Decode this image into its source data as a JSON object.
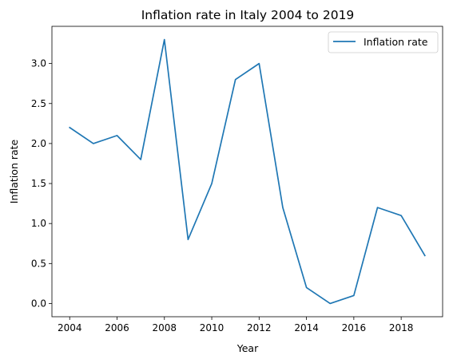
{
  "chart_data": {
    "type": "line",
    "title": "Inflation rate in Italy 2004 to 2019",
    "xlabel": "Year",
    "ylabel": "Inflation rate",
    "x": [
      2004,
      2005,
      2006,
      2007,
      2008,
      2009,
      2010,
      2011,
      2012,
      2013,
      2014,
      2015,
      2016,
      2017,
      2018,
      2019
    ],
    "series": [
      {
        "name": "Inflation rate",
        "color": "#1f77b4",
        "values": [
          2.2,
          2.0,
          2.1,
          1.8,
          3.3,
          0.8,
          1.5,
          2.8,
          3.0,
          1.2,
          0.2,
          0.0,
          0.1,
          1.2,
          1.1,
          0.6
        ]
      }
    ],
    "xlim": [
      2003.25,
      2019.75
    ],
    "ylim": [
      -0.165,
      3.465
    ],
    "xticks": [
      2004,
      2006,
      2008,
      2010,
      2012,
      2014,
      2016,
      2018
    ],
    "xtick_labels": [
      "2004",
      "2006",
      "2008",
      "2010",
      "2012",
      "2014",
      "2016",
      "2018"
    ],
    "yticks": [
      0.0,
      0.5,
      1.0,
      1.5,
      2.0,
      2.5,
      3.0
    ],
    "ytick_labels": [
      "0.0",
      "0.5",
      "1.0",
      "1.5",
      "2.0",
      "2.5",
      "3.0"
    ],
    "grid": false,
    "legend_position": "upper right"
  }
}
